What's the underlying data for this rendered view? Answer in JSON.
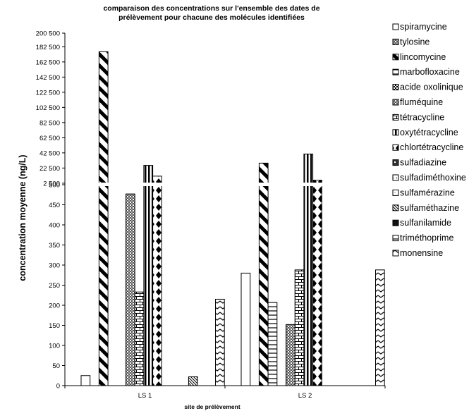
{
  "chart_data": {
    "type": "bar",
    "title": "comparaison des concentrations sur l'ensemble des dates de prélèvement pour chacune des molécules identifiées",
    "title_lines": [
      "comparaison des concentrations sur l'ensemble des dates de",
      "prélèvement pour chacune des molécules identifiées"
    ],
    "xlabel": "site de prélèvement",
    "ylabel": "concentration moyenne (ng/L)",
    "categories": [
      "LS 1",
      "LS 2"
    ],
    "y_axis": {
      "scale": "broken",
      "lower_segment": [
        0,
        500
      ],
      "upper_segment": [
        500,
        200500
      ],
      "upper_step": 20000,
      "tick_labels": [
        "0",
        "50",
        "100",
        "150",
        "200",
        "250",
        "300",
        "350",
        "400",
        "450",
        "500",
        "2 500",
        "22 500",
        "42 500",
        "62 500",
        "82 500",
        "102 500",
        "122 500",
        "142 500",
        "162 500",
        "182 500",
        "200 500"
      ]
    },
    "grid": false,
    "legend_position": "right",
    "series": [
      {
        "name": "spiramycine",
        "values": [
          25,
          280
        ],
        "pattern": "plain",
        "fill": "#ffffff"
      },
      {
        "name": "tylosine",
        "values": [
          null,
          null
        ],
        "pattern": "crosshatch",
        "fill": "#8a8a8a"
      },
      {
        "name": "lincomycine",
        "values": [
          176000,
          29000
        ],
        "pattern": "wide-diag",
        "fill": "#ffffff"
      },
      {
        "name": "marbofloxacine",
        "values": [
          null,
          207
        ],
        "pattern": "hlines",
        "fill": "#ffffff"
      },
      {
        "name": "acide oxolinique",
        "values": [
          null,
          null
        ],
        "pattern": "checker",
        "fill": "#333333"
      },
      {
        "name": "fluméquine",
        "values": [
          477,
          152
        ],
        "pattern": "crosshatch",
        "fill": "#7f7f7f"
      },
      {
        "name": "tétracycline",
        "values": [
          233,
          288
        ],
        "pattern": "brick",
        "fill": "#ffffff"
      },
      {
        "name": "oxytétracycline",
        "values": [
          26000,
          41000
        ],
        "pattern": "vstripes",
        "fill": "#ffffff"
      },
      {
        "name": "chlortétracycline",
        "values": [
          11800,
          6500
        ],
        "pattern": "diamonds",
        "fill": "#ffffff"
      },
      {
        "name": "sulfadiazine",
        "values": [
          null,
          null
        ],
        "pattern": "weave",
        "fill": "#333333"
      },
      {
        "name": "sulfadiméthoxine",
        "values": [
          null,
          null
        ],
        "pattern": "dots",
        "fill": "#ffffff"
      },
      {
        "name": "sulfamérazine",
        "values": [
          null,
          null
        ],
        "pattern": "fine-dots",
        "fill": "#ffffff"
      },
      {
        "name": "sulfaméthazine",
        "values": [
          22,
          null
        ],
        "pattern": "narrow-diag",
        "fill": "#ffffff"
      },
      {
        "name": "sulfanilamide",
        "values": [
          null,
          null
        ],
        "pattern": "solid-dark",
        "fill": "#000000"
      },
      {
        "name": "triméthoprime",
        "values": [
          null,
          null
        ],
        "pattern": "hlines",
        "fill": "#ffffff"
      },
      {
        "name": "monensine",
        "values": [
          215,
          288
        ],
        "pattern": "zigzag",
        "fill": "#ffffff"
      }
    ]
  }
}
